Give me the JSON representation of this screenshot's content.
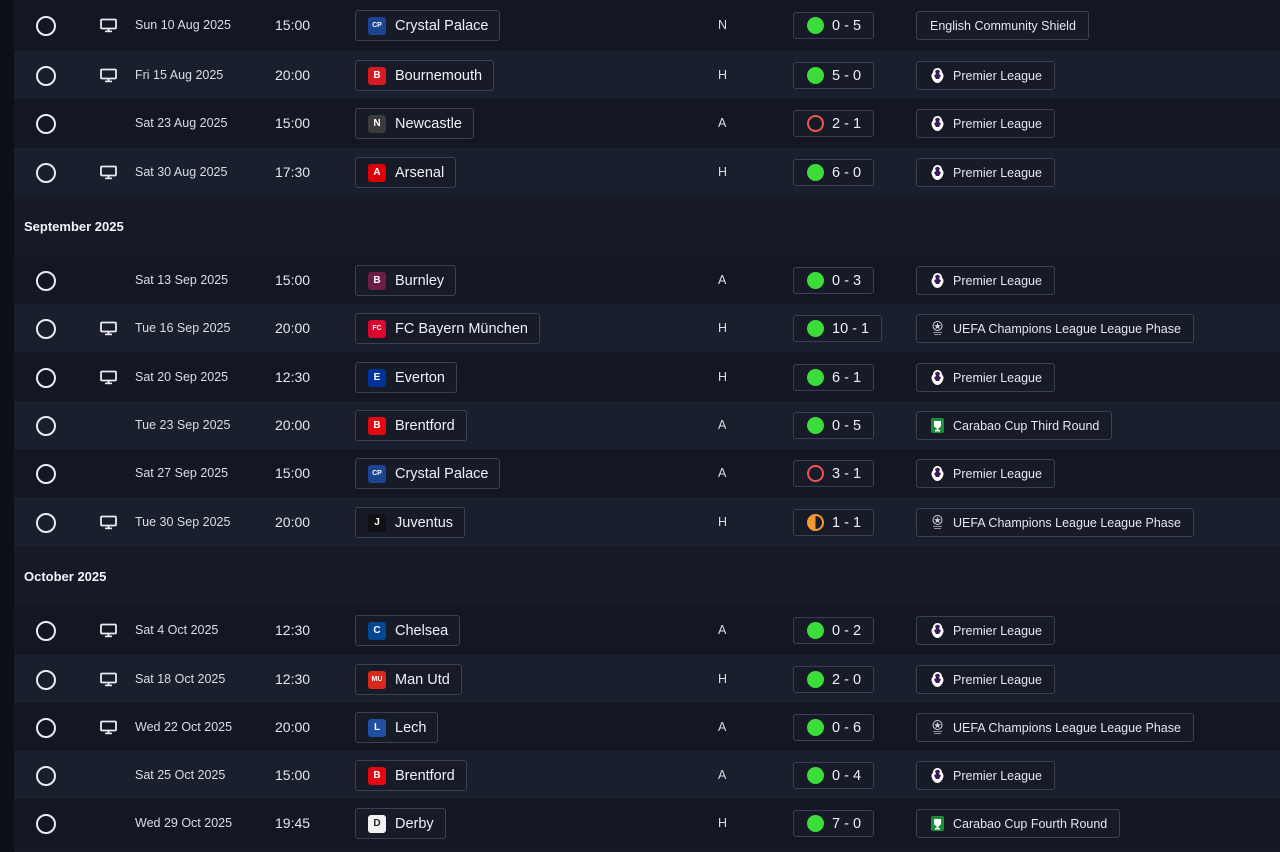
{
  "accent_colors": {
    "win": "#3ddc3a",
    "loss": "#f0544f",
    "draw": "#f29a2e"
  },
  "sections": [
    {
      "title": "",
      "fixtures": [
        {
          "tv": true,
          "date": "Sun 10 Aug 2025",
          "time": "15:00",
          "opponent": "Crystal Palace",
          "crest": {
            "icon": "crystal-palace-crest",
            "color": "#1b458f",
            "glyph": "CP"
          },
          "venue": "N",
          "result": "win",
          "score": "0 - 5",
          "competition": "English Community Shield",
          "comp_icon": ""
        },
        {
          "tv": true,
          "date": "Fri 15 Aug 2025",
          "time": "20:00",
          "opponent": "Bournemouth",
          "crest": {
            "icon": "bournemouth-crest",
            "color": "#d71920",
            "glyph": "B"
          },
          "venue": "H",
          "result": "win",
          "score": "5 - 0",
          "competition": "Premier League",
          "comp_icon": "premier-league"
        },
        {
          "tv": false,
          "date": "Sat 23 Aug 2025",
          "time": "15:00",
          "opponent": "Newcastle",
          "crest": {
            "icon": "newcastle-crest",
            "color": "#3b3b3b",
            "glyph": "N"
          },
          "venue": "A",
          "result": "loss",
          "score": "2 - 1",
          "competition": "Premier League",
          "comp_icon": "premier-league"
        },
        {
          "tv": true,
          "date": "Sat 30 Aug 2025",
          "time": "17:30",
          "opponent": "Arsenal",
          "crest": {
            "icon": "arsenal-crest",
            "color": "#db0007",
            "glyph": "A"
          },
          "venue": "H",
          "result": "win",
          "score": "6 - 0",
          "competition": "Premier League",
          "comp_icon": "premier-league"
        }
      ]
    },
    {
      "title": "September 2025",
      "fixtures": [
        {
          "tv": false,
          "date": "Sat 13 Sep 2025",
          "time": "15:00",
          "opponent": "Burnley",
          "crest": {
            "icon": "burnley-crest",
            "color": "#6c1d45",
            "glyph": "B"
          },
          "venue": "A",
          "result": "win",
          "score": "0 - 3",
          "competition": "Premier League",
          "comp_icon": "premier-league"
        },
        {
          "tv": true,
          "date": "Tue 16 Sep 2025",
          "time": "20:00",
          "opponent": "FC Bayern München",
          "crest": {
            "icon": "bayern-crest",
            "color": "#dc052d",
            "glyph": "FCB"
          },
          "venue": "H",
          "result": "win",
          "score": "10 - 1",
          "competition": "UEFA Champions League League Phase",
          "comp_icon": "champions-league"
        },
        {
          "tv": true,
          "date": "Sat 20 Sep 2025",
          "time": "12:30",
          "opponent": "Everton",
          "crest": {
            "icon": "everton-crest",
            "color": "#003399",
            "glyph": "E"
          },
          "venue": "H",
          "result": "win",
          "score": "6 - 1",
          "competition": "Premier League",
          "comp_icon": "premier-league"
        },
        {
          "tv": false,
          "date": "Tue 23 Sep 2025",
          "time": "20:00",
          "opponent": "Brentford",
          "crest": {
            "icon": "brentford-crest",
            "color": "#e30613",
            "glyph": "B"
          },
          "venue": "A",
          "result": "win",
          "score": "0 - 5",
          "competition": "Carabao Cup Third Round",
          "comp_icon": "carabao-cup"
        },
        {
          "tv": false,
          "date": "Sat 27 Sep 2025",
          "time": "15:00",
          "opponent": "Crystal Palace",
          "crest": {
            "icon": "crystal-palace-crest",
            "color": "#1b458f",
            "glyph": "CP"
          },
          "venue": "A",
          "result": "loss",
          "score": "3 - 1",
          "competition": "Premier League",
          "comp_icon": "premier-league"
        },
        {
          "tv": true,
          "date": "Tue 30 Sep 2025",
          "time": "20:00",
          "opponent": "Juventus",
          "crest": {
            "icon": "juventus-crest",
            "color": "#111111",
            "glyph": "J"
          },
          "venue": "H",
          "result": "draw",
          "score": "1 - 1",
          "competition": "UEFA Champions League League Phase",
          "comp_icon": "champions-league"
        }
      ]
    },
    {
      "title": "October 2025",
      "fixtures": [
        {
          "tv": true,
          "date": "Sat 4 Oct 2025",
          "time": "12:30",
          "opponent": "Chelsea",
          "crest": {
            "icon": "chelsea-crest",
            "color": "#034694",
            "glyph": "C"
          },
          "venue": "A",
          "result": "win",
          "score": "0 - 2",
          "competition": "Premier League",
          "comp_icon": "premier-league"
        },
        {
          "tv": true,
          "date": "Sat 18 Oct 2025",
          "time": "12:30",
          "opponent": "Man Utd",
          "crest": {
            "icon": "man-utd-crest",
            "color": "#da291c",
            "glyph": "MU"
          },
          "venue": "H",
          "result": "win",
          "score": "2 - 0",
          "competition": "Premier League",
          "comp_icon": "premier-league"
        },
        {
          "tv": true,
          "date": "Wed 22 Oct 2025",
          "time": "20:00",
          "opponent": "Lech",
          "crest": {
            "icon": "lech-crest",
            "color": "#1e4fa0",
            "glyph": "L"
          },
          "venue": "A",
          "result": "win",
          "score": "0 - 6",
          "competition": "UEFA Champions League League Phase",
          "comp_icon": "champions-league"
        },
        {
          "tv": false,
          "date": "Sat 25 Oct 2025",
          "time": "15:00",
          "opponent": "Brentford",
          "crest": {
            "icon": "brentford-crest",
            "color": "#e30613",
            "glyph": "B"
          },
          "venue": "A",
          "result": "win",
          "score": "0 - 4",
          "competition": "Premier League",
          "comp_icon": "premier-league"
        },
        {
          "tv": false,
          "date": "Wed 29 Oct 2025",
          "time": "19:45",
          "opponent": "Derby",
          "crest": {
            "icon": "derby-crest",
            "color": "#f2f2f2",
            "glyph": "D"
          },
          "venue": "H",
          "result": "win",
          "score": "7 - 0",
          "competition": "Carabao Cup Fourth Round",
          "comp_icon": "carabao-cup"
        }
      ]
    }
  ]
}
